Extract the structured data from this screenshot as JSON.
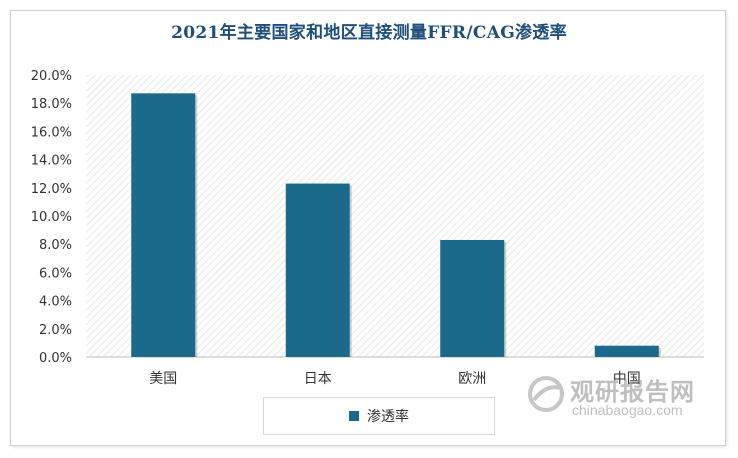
{
  "chart_data": {
    "type": "bar",
    "title": "2021年主要国家和地区直接测量FFR/CAG渗透率",
    "categories": [
      "美国",
      "日本",
      "欧洲",
      "中国"
    ],
    "series": [
      {
        "name": "渗透率",
        "values": [
          18.7,
          12.3,
          8.3,
          0.8
        ],
        "color": "#1b6a8c"
      }
    ],
    "ylim": [
      0,
      20
    ],
    "yticks": [
      "0.0%",
      "2.0%",
      "4.0%",
      "6.0%",
      "8.0%",
      "10.0%",
      "12.0%",
      "14.0%",
      "16.0%",
      "18.0%",
      "20.0%"
    ],
    "grid": false,
    "legend_position": "bottom"
  },
  "watermark": {
    "text_cn": "观研报告网",
    "text_en": "chinabaogao.com"
  }
}
